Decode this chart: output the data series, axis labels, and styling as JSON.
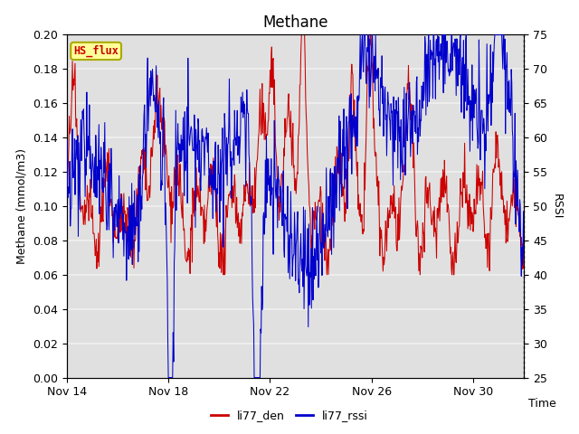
{
  "title": "Methane",
  "ylabel_left": "Methane (mmol/m3)",
  "ylabel_right": "RSSI",
  "xlabel": "Time",
  "ylim_left": [
    0.0,
    0.2
  ],
  "ylim_right": [
    25,
    75
  ],
  "yticks_left": [
    0.0,
    0.02,
    0.04,
    0.06,
    0.08,
    0.1,
    0.12,
    0.14,
    0.16,
    0.18,
    0.2
  ],
  "yticks_right": [
    25,
    30,
    35,
    40,
    45,
    50,
    55,
    60,
    65,
    70,
    75
  ],
  "xtick_labels": [
    "Nov 14",
    "Nov 18",
    "Nov 22",
    "Nov 26",
    "Nov 30"
  ],
  "xtick_positions": [
    0,
    4,
    8,
    12,
    16
  ],
  "color_red": "#cc0000",
  "color_blue": "#0000cc",
  "legend_label_red": "li77_den",
  "legend_label_blue": "li77_rssi",
  "box_label": "HS_flux",
  "box_facecolor": "#ffff99",
  "box_edgecolor": "#aaaa00",
  "plot_bg_color": "#e0e0e0",
  "grid_color": "#f0f0f0",
  "seed": 42,
  "n_points": 864,
  "xlim": [
    0,
    18
  ]
}
